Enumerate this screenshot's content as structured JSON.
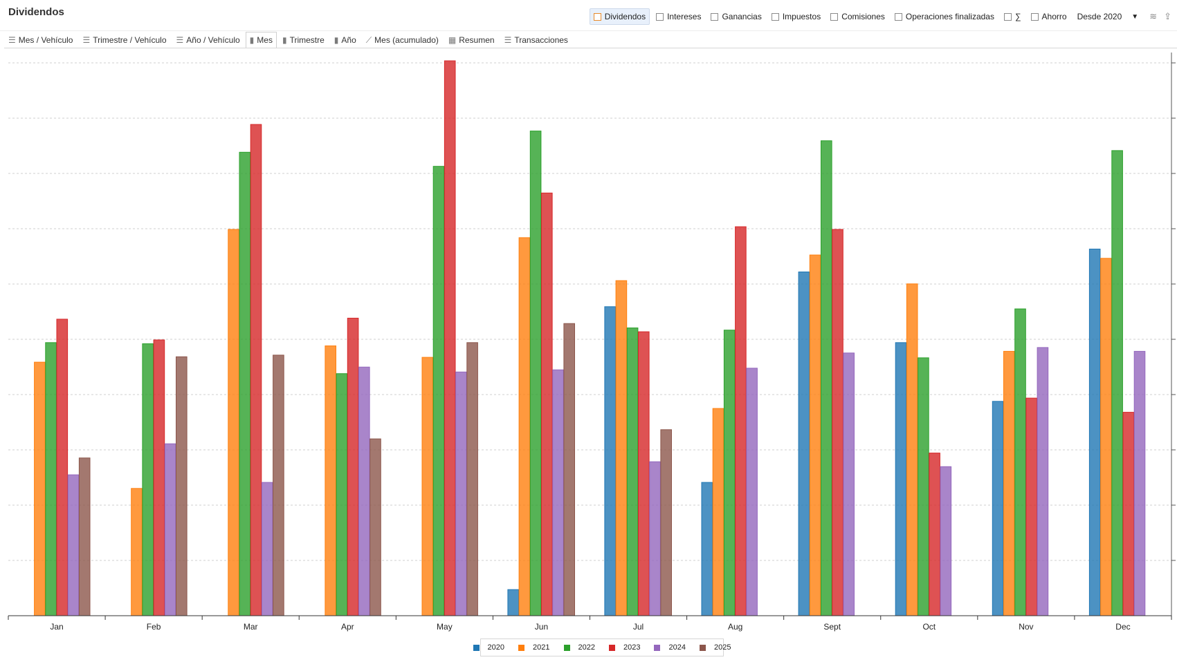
{
  "app": {
    "title": "Dividendos"
  },
  "filters": [
    {
      "label": "Dividendos",
      "checked": true
    },
    {
      "label": "Intereses",
      "checked": false
    },
    {
      "label": "Ganancias",
      "checked": false
    },
    {
      "label": "Impuestos",
      "checked": false
    },
    {
      "label": "Comisiones",
      "checked": false
    },
    {
      "label": "Operaciones finalizadas",
      "checked": false
    },
    {
      "label": "∑",
      "checked": false
    },
    {
      "label": "Ahorro",
      "checked": false
    }
  ],
  "period_select": {
    "value": "Desde 2020"
  },
  "toolbar_icons": [
    "layers-icon",
    "export-icon"
  ],
  "view_tabs": [
    {
      "label": "Mes / Vehículo",
      "icon": "list-icon"
    },
    {
      "label": "Trimestre / Vehículo",
      "icon": "list-icon"
    },
    {
      "label": "Año / Vehículo",
      "icon": "list-icon"
    },
    {
      "label": "Mes",
      "icon": "bar-chart-icon",
      "active": true
    },
    {
      "label": "Trimestre",
      "icon": "bar-chart-icon"
    },
    {
      "label": "Año",
      "icon": "bar-chart-icon"
    },
    {
      "label": "Mes (acumulado)",
      "icon": "line-chart-icon"
    },
    {
      "label": "Resumen",
      "icon": "calendar-icon"
    },
    {
      "label": "Transacciones",
      "icon": "list-icon"
    }
  ],
  "chart_data": {
    "type": "bar",
    "title": "",
    "xlabel": "",
    "ylabel": "",
    "ylim": [
      0,
      10.2
    ],
    "grid": true,
    "legend": "bottom-center",
    "categories": [
      "Jan",
      "Feb",
      "Mar",
      "Apr",
      "May",
      "Jun",
      "Jul",
      "Aug",
      "Sept",
      "Oct",
      "Nov",
      "Dec"
    ],
    "series": [
      {
        "name": "2020",
        "color": "#1f77b4",
        "values": [
          0,
          0,
          0,
          0,
          0,
          0.48,
          5.68,
          2.45,
          6.32,
          5.02,
          3.94,
          6.74
        ]
      },
      {
        "name": "2021",
        "color": "#ff7f0e",
        "values": [
          4.66,
          2.34,
          7.1,
          4.96,
          4.75,
          6.95,
          6.16,
          3.81,
          6.63,
          6.1,
          4.86,
          6.57
        ]
      },
      {
        "name": "2022",
        "color": "#2ca02c",
        "values": [
          5.02,
          5.0,
          8.52,
          4.45,
          8.26,
          8.91,
          5.29,
          5.25,
          8.73,
          4.74,
          5.64,
          8.55
        ]
      },
      {
        "name": "2023",
        "color": "#d62728",
        "values": [
          5.45,
          5.07,
          9.03,
          5.47,
          10.2,
          7.77,
          5.22,
          7.15,
          7.1,
          2.99,
          4.0,
          3.74
        ]
      },
      {
        "name": "2024",
        "color": "#9467bd",
        "values": [
          2.59,
          3.16,
          2.45,
          4.57,
          4.48,
          4.52,
          2.83,
          4.55,
          4.83,
          2.74,
          4.93,
          4.86
        ]
      },
      {
        "name": "2025",
        "color": "#8c564b",
        "values": [
          2.9,
          4.76,
          4.79,
          3.25,
          5.02,
          5.37,
          3.42,
          0,
          0,
          0,
          0,
          0
        ]
      }
    ]
  }
}
